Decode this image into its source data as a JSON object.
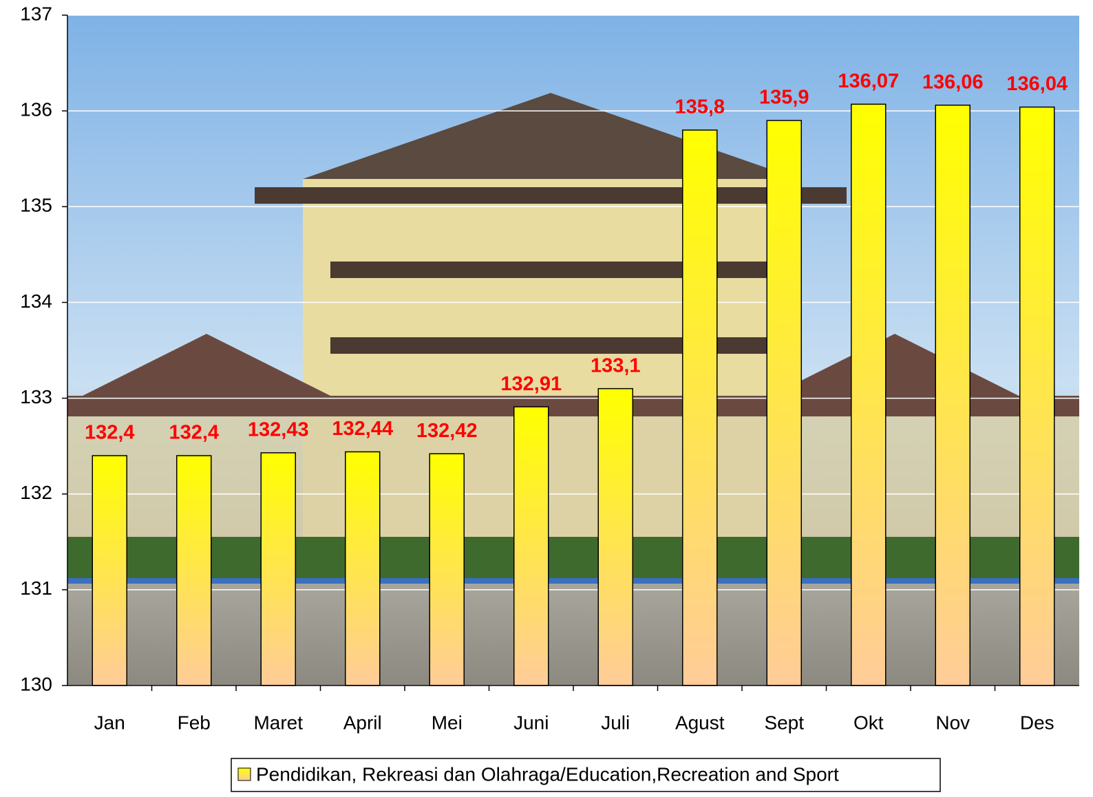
{
  "chart_data": {
    "type": "bar",
    "categories": [
      "Jan",
      "Feb",
      "Maret",
      "April",
      "Mei",
      "Juni",
      "Juli",
      "Agust",
      "Sept",
      "Okt",
      "Nov",
      "Des"
    ],
    "series": [
      {
        "name": "Pendidikan, Rekreasi dan Olahraga/Education,Recreation and Sport",
        "color": "#ffff00",
        "values": [
          132.4,
          132.4,
          132.43,
          132.44,
          132.42,
          132.91,
          133.1,
          135.8,
          135.9,
          136.07,
          136.06,
          136.04
        ],
        "value_labels": [
          "132,4",
          "132,4",
          "132,43",
          "132,44",
          "132,42",
          "132,91",
          "133,1",
          "135,8",
          "135,9",
          "136,07",
          "136,06",
          "136,04"
        ]
      }
    ],
    "ylim": [
      130,
      137
    ],
    "yticks": [
      130,
      131,
      132,
      133,
      134,
      135,
      136,
      137
    ],
    "grid": true,
    "legend": "bottom"
  }
}
